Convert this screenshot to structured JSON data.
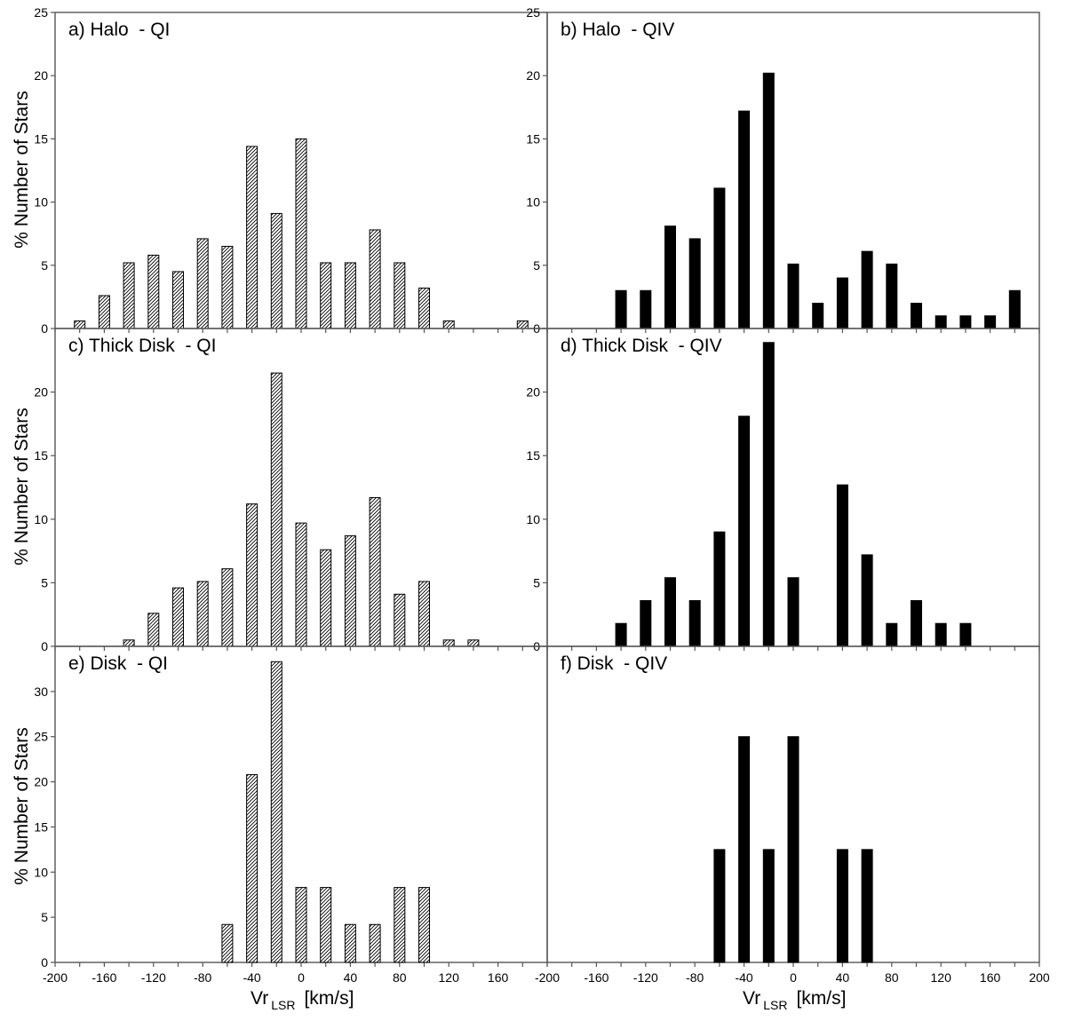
{
  "figure": {
    "ylabel": "% Number of Stars",
    "xlabel_main": "Vr",
    "xlabel_sub": "LSR",
    "xlabel_unit": "[km/s]"
  },
  "chart_data": [
    {
      "type": "bar",
      "panel": "a",
      "label": "a) Halo  - QI",
      "fill": "hatched",
      "xlim": [
        -200,
        200
      ],
      "ylim": [
        0,
        25
      ],
      "yticks": [
        0,
        5,
        10,
        15,
        20,
        25
      ],
      "x": [
        -180,
        -160,
        -140,
        -120,
        -100,
        -80,
        -60,
        -40,
        -20,
        0,
        20,
        40,
        60,
        80,
        100,
        120,
        180
      ],
      "values": [
        0.6,
        2.6,
        5.2,
        5.8,
        4.5,
        7.1,
        6.5,
        14.4,
        9.1,
        15.0,
        5.2,
        5.2,
        7.8,
        5.2,
        3.2,
        0.6,
        0.6
      ]
    },
    {
      "type": "bar",
      "panel": "b",
      "label": "b) Halo  - QIV",
      "fill": "solid",
      "xlim": [
        -200,
        200
      ],
      "ylim": [
        0,
        25
      ],
      "yticks": [
        0,
        5,
        10,
        15,
        20,
        25
      ],
      "x": [
        -140,
        -120,
        -100,
        -80,
        -60,
        -40,
        -20,
        0,
        20,
        40,
        60,
        80,
        100,
        120,
        140,
        160,
        180
      ],
      "values": [
        3.0,
        3.0,
        8.1,
        7.1,
        11.1,
        17.2,
        20.2,
        5.1,
        2.0,
        4.0,
        6.1,
        5.1,
        2.0,
        1.0,
        1.0,
        1.0,
        3.0
      ]
    },
    {
      "type": "bar",
      "panel": "c",
      "label": "c) Thick Disk  - QI",
      "fill": "hatched",
      "xlim": [
        -200,
        200
      ],
      "ylim": [
        0,
        25
      ],
      "yticks": [
        0,
        5,
        10,
        15,
        20
      ],
      "x": [
        -140,
        -120,
        -100,
        -80,
        -60,
        -40,
        -20,
        0,
        20,
        40,
        60,
        80,
        100,
        120,
        140
      ],
      "values": [
        0.5,
        2.6,
        4.6,
        5.1,
        6.1,
        11.2,
        21.5,
        9.7,
        7.6,
        8.7,
        11.7,
        4.1,
        5.1,
        0.5,
        0.5
      ]
    },
    {
      "type": "bar",
      "panel": "d",
      "label": "d) Thick Disk  - QIV",
      "fill": "solid",
      "xlim": [
        -200,
        200
      ],
      "ylim": [
        0,
        25
      ],
      "yticks": [
        0,
        5,
        10,
        15,
        20
      ],
      "x": [
        -140,
        -120,
        -100,
        -80,
        -60,
        -40,
        -20,
        0,
        40,
        60,
        80,
        100,
        120,
        140
      ],
      "values": [
        1.8,
        3.6,
        5.4,
        3.6,
        9.0,
        18.1,
        23.9,
        5.4,
        12.7,
        7.2,
        1.8,
        3.6,
        1.8,
        1.8
      ]
    },
    {
      "type": "bar",
      "panel": "e",
      "label": "e) Disk  - QI",
      "fill": "hatched",
      "xlim": [
        -200,
        200
      ],
      "ylim": [
        0,
        35
      ],
      "yticks": [
        0,
        5,
        10,
        15,
        20,
        25,
        30
      ],
      "xticks": [
        "-200",
        "-160",
        "-120",
        "-80",
        "-40",
        "0",
        "40",
        "80",
        "120",
        "160"
      ],
      "x": [
        -60,
        -40,
        -20,
        0,
        20,
        40,
        60,
        80,
        100
      ],
      "values": [
        4.2,
        20.8,
        33.3,
        8.3,
        8.3,
        4.2,
        4.2,
        8.3,
        8.3
      ]
    },
    {
      "type": "bar",
      "panel": "f",
      "label": "f) Disk  - QIV",
      "fill": "solid",
      "xlim": [
        -200,
        200
      ],
      "ylim": [
        0,
        35
      ],
      "yticks": [],
      "xticks": [
        "-200",
        "-160",
        "-120",
        "-80",
        "-40",
        "0",
        "40",
        "80",
        "120",
        "160",
        "200"
      ],
      "x": [
        -60,
        -40,
        -20,
        0,
        40,
        60
      ],
      "values": [
        12.5,
        25.0,
        12.5,
        25.0,
        12.5,
        12.5
      ]
    }
  ]
}
